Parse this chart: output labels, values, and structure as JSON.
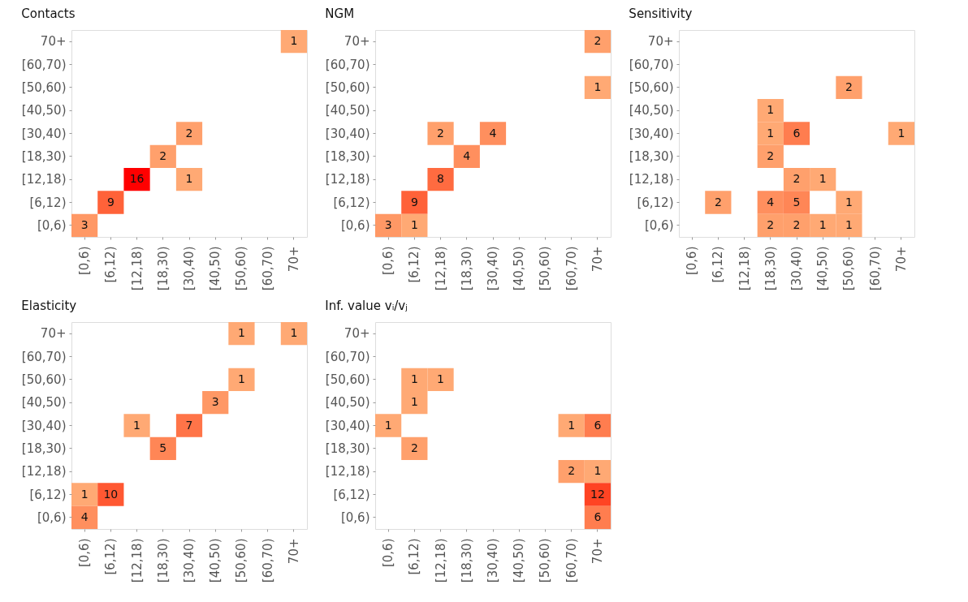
{
  "chart_data": [
    {
      "type": "heatmap",
      "title": "Contacts",
      "data_labels": true,
      "categories": [
        "[0,6)",
        "[6,12)",
        "[12,18)",
        "[18,30)",
        "[30,40)",
        "[40,50)",
        "[50,60)",
        "[60,70)",
        "70+"
      ],
      "y_categories": [
        "70+",
        "[60,70)",
        "[50,60)",
        "[40,50)",
        "[30,40)",
        "[18,30)",
        "[12,18)",
        "[6,12)",
        "[0,6)"
      ],
      "cells": [
        [
          null,
          null,
          null,
          null,
          null,
          null,
          null,
          null,
          1
        ],
        [
          null,
          null,
          null,
          null,
          null,
          null,
          null,
          null,
          null
        ],
        [
          null,
          null,
          null,
          null,
          null,
          null,
          null,
          null,
          null
        ],
        [
          null,
          null,
          null,
          null,
          null,
          null,
          null,
          null,
          null
        ],
        [
          null,
          null,
          null,
          null,
          2,
          null,
          null,
          null,
          null
        ],
        [
          null,
          null,
          null,
          2,
          null,
          null,
          null,
          null,
          null
        ],
        [
          null,
          null,
          16,
          null,
          1,
          null,
          null,
          null,
          null
        ],
        [
          null,
          9,
          null,
          null,
          null,
          null,
          null,
          null,
          null
        ],
        [
          3,
          null,
          null,
          null,
          null,
          null,
          null,
          null,
          null
        ]
      ]
    },
    {
      "type": "heatmap",
      "title": "NGM",
      "data_labels": true,
      "categories": [
        "[0,6)",
        "[6,12)",
        "[12,18)",
        "[18,30)",
        "[30,40)",
        "[40,50)",
        "[50,60)",
        "[60,70)",
        "70+"
      ],
      "y_categories": [
        "70+",
        "[60,70)",
        "[50,60)",
        "[40,50)",
        "[30,40)",
        "[18,30)",
        "[12,18)",
        "[6,12)",
        "[0,6)"
      ],
      "cells": [
        [
          null,
          null,
          null,
          null,
          null,
          null,
          null,
          null,
          2
        ],
        [
          null,
          null,
          null,
          null,
          null,
          null,
          null,
          null,
          null
        ],
        [
          null,
          null,
          null,
          null,
          null,
          null,
          null,
          null,
          1
        ],
        [
          null,
          null,
          null,
          null,
          null,
          null,
          null,
          null,
          null
        ],
        [
          null,
          null,
          2,
          null,
          4,
          null,
          null,
          null,
          null
        ],
        [
          null,
          null,
          null,
          4,
          null,
          null,
          null,
          null,
          null
        ],
        [
          null,
          null,
          8,
          null,
          null,
          null,
          null,
          null,
          null
        ],
        [
          null,
          9,
          null,
          null,
          null,
          null,
          null,
          null,
          null
        ],
        [
          3,
          1,
          null,
          null,
          null,
          null,
          null,
          null,
          null
        ]
      ]
    },
    {
      "type": "heatmap",
      "title": "Sensitivity",
      "data_labels": true,
      "categories": [
        "[0,6)",
        "[6,12)",
        "[12,18)",
        "[18,30)",
        "[30,40)",
        "[40,50)",
        "[50,60)",
        "[60,70)",
        "70+"
      ],
      "y_categories": [
        "70+",
        "[60,70)",
        "[50,60)",
        "[40,50)",
        "[30,40)",
        "[18,30)",
        "[12,18)",
        "[6,12)",
        "[0,6)"
      ],
      "cells": [
        [
          null,
          null,
          null,
          null,
          null,
          null,
          null,
          null,
          null
        ],
        [
          null,
          null,
          null,
          null,
          null,
          null,
          null,
          null,
          null
        ],
        [
          null,
          null,
          null,
          null,
          null,
          null,
          2,
          null,
          null
        ],
        [
          null,
          null,
          null,
          1,
          null,
          null,
          null,
          null,
          null
        ],
        [
          null,
          null,
          null,
          1,
          6,
          null,
          null,
          null,
          1
        ],
        [
          null,
          null,
          null,
          2,
          null,
          null,
          null,
          null,
          null
        ],
        [
          null,
          null,
          null,
          null,
          2,
          1,
          null,
          null,
          null
        ],
        [
          null,
          2,
          null,
          4,
          5,
          null,
          1,
          null,
          null
        ],
        [
          null,
          null,
          null,
          2,
          2,
          1,
          1,
          null,
          null
        ]
      ]
    },
    {
      "type": "heatmap",
      "title": "Elasticity",
      "data_labels": true,
      "categories": [
        "[0,6)",
        "[6,12)",
        "[12,18)",
        "[18,30)",
        "[30,40)",
        "[40,50)",
        "[50,60)",
        "[60,70)",
        "70+"
      ],
      "y_categories": [
        "70+",
        "[60,70)",
        "[50,60)",
        "[40,50)",
        "[30,40)",
        "[18,30)",
        "[12,18)",
        "[6,12)",
        "[0,6)"
      ],
      "cells": [
        [
          null,
          null,
          null,
          null,
          null,
          null,
          1,
          null,
          1
        ],
        [
          null,
          null,
          null,
          null,
          null,
          null,
          null,
          null,
          null
        ],
        [
          null,
          null,
          null,
          null,
          null,
          null,
          1,
          null,
          null
        ],
        [
          null,
          null,
          null,
          null,
          null,
          3,
          null,
          null,
          null
        ],
        [
          null,
          null,
          1,
          null,
          7,
          null,
          null,
          null,
          null
        ],
        [
          null,
          null,
          null,
          5,
          null,
          null,
          null,
          null,
          null
        ],
        [
          null,
          null,
          null,
          null,
          null,
          null,
          null,
          null,
          null
        ],
        [
          1,
          10,
          null,
          null,
          null,
          null,
          null,
          null,
          null
        ],
        [
          4,
          null,
          null,
          null,
          null,
          null,
          null,
          null,
          null
        ]
      ]
    },
    {
      "type": "heatmap",
      "title": "Inf. value  vᵢ/vⱼ",
      "data_labels": true,
      "categories": [
        "[0,6)",
        "[6,12)",
        "[12,18)",
        "[18,30)",
        "[30,40)",
        "[40,50)",
        "[50,60)",
        "[60,70)",
        "70+"
      ],
      "y_categories": [
        "70+",
        "[60,70)",
        "[50,60)",
        "[40,50)",
        "[30,40)",
        "[18,30)",
        "[12,18)",
        "[6,12)",
        "[0,6)"
      ],
      "cells": [
        [
          null,
          null,
          null,
          null,
          null,
          null,
          null,
          null,
          null
        ],
        [
          null,
          null,
          null,
          null,
          null,
          null,
          null,
          null,
          null
        ],
        [
          null,
          1,
          1,
          null,
          null,
          null,
          null,
          null,
          null
        ],
        [
          null,
          1,
          null,
          null,
          null,
          null,
          null,
          null,
          null
        ],
        [
          1,
          null,
          null,
          null,
          null,
          null,
          null,
          1,
          6
        ],
        [
          null,
          2,
          null,
          null,
          null,
          null,
          null,
          null,
          null
        ],
        [
          null,
          null,
          null,
          null,
          null,
          null,
          null,
          2,
          1
        ],
        [
          null,
          null,
          null,
          null,
          null,
          null,
          null,
          null,
          12
        ],
        [
          null,
          null,
          null,
          null,
          null,
          null,
          null,
          null,
          6
        ]
      ]
    }
  ]
}
